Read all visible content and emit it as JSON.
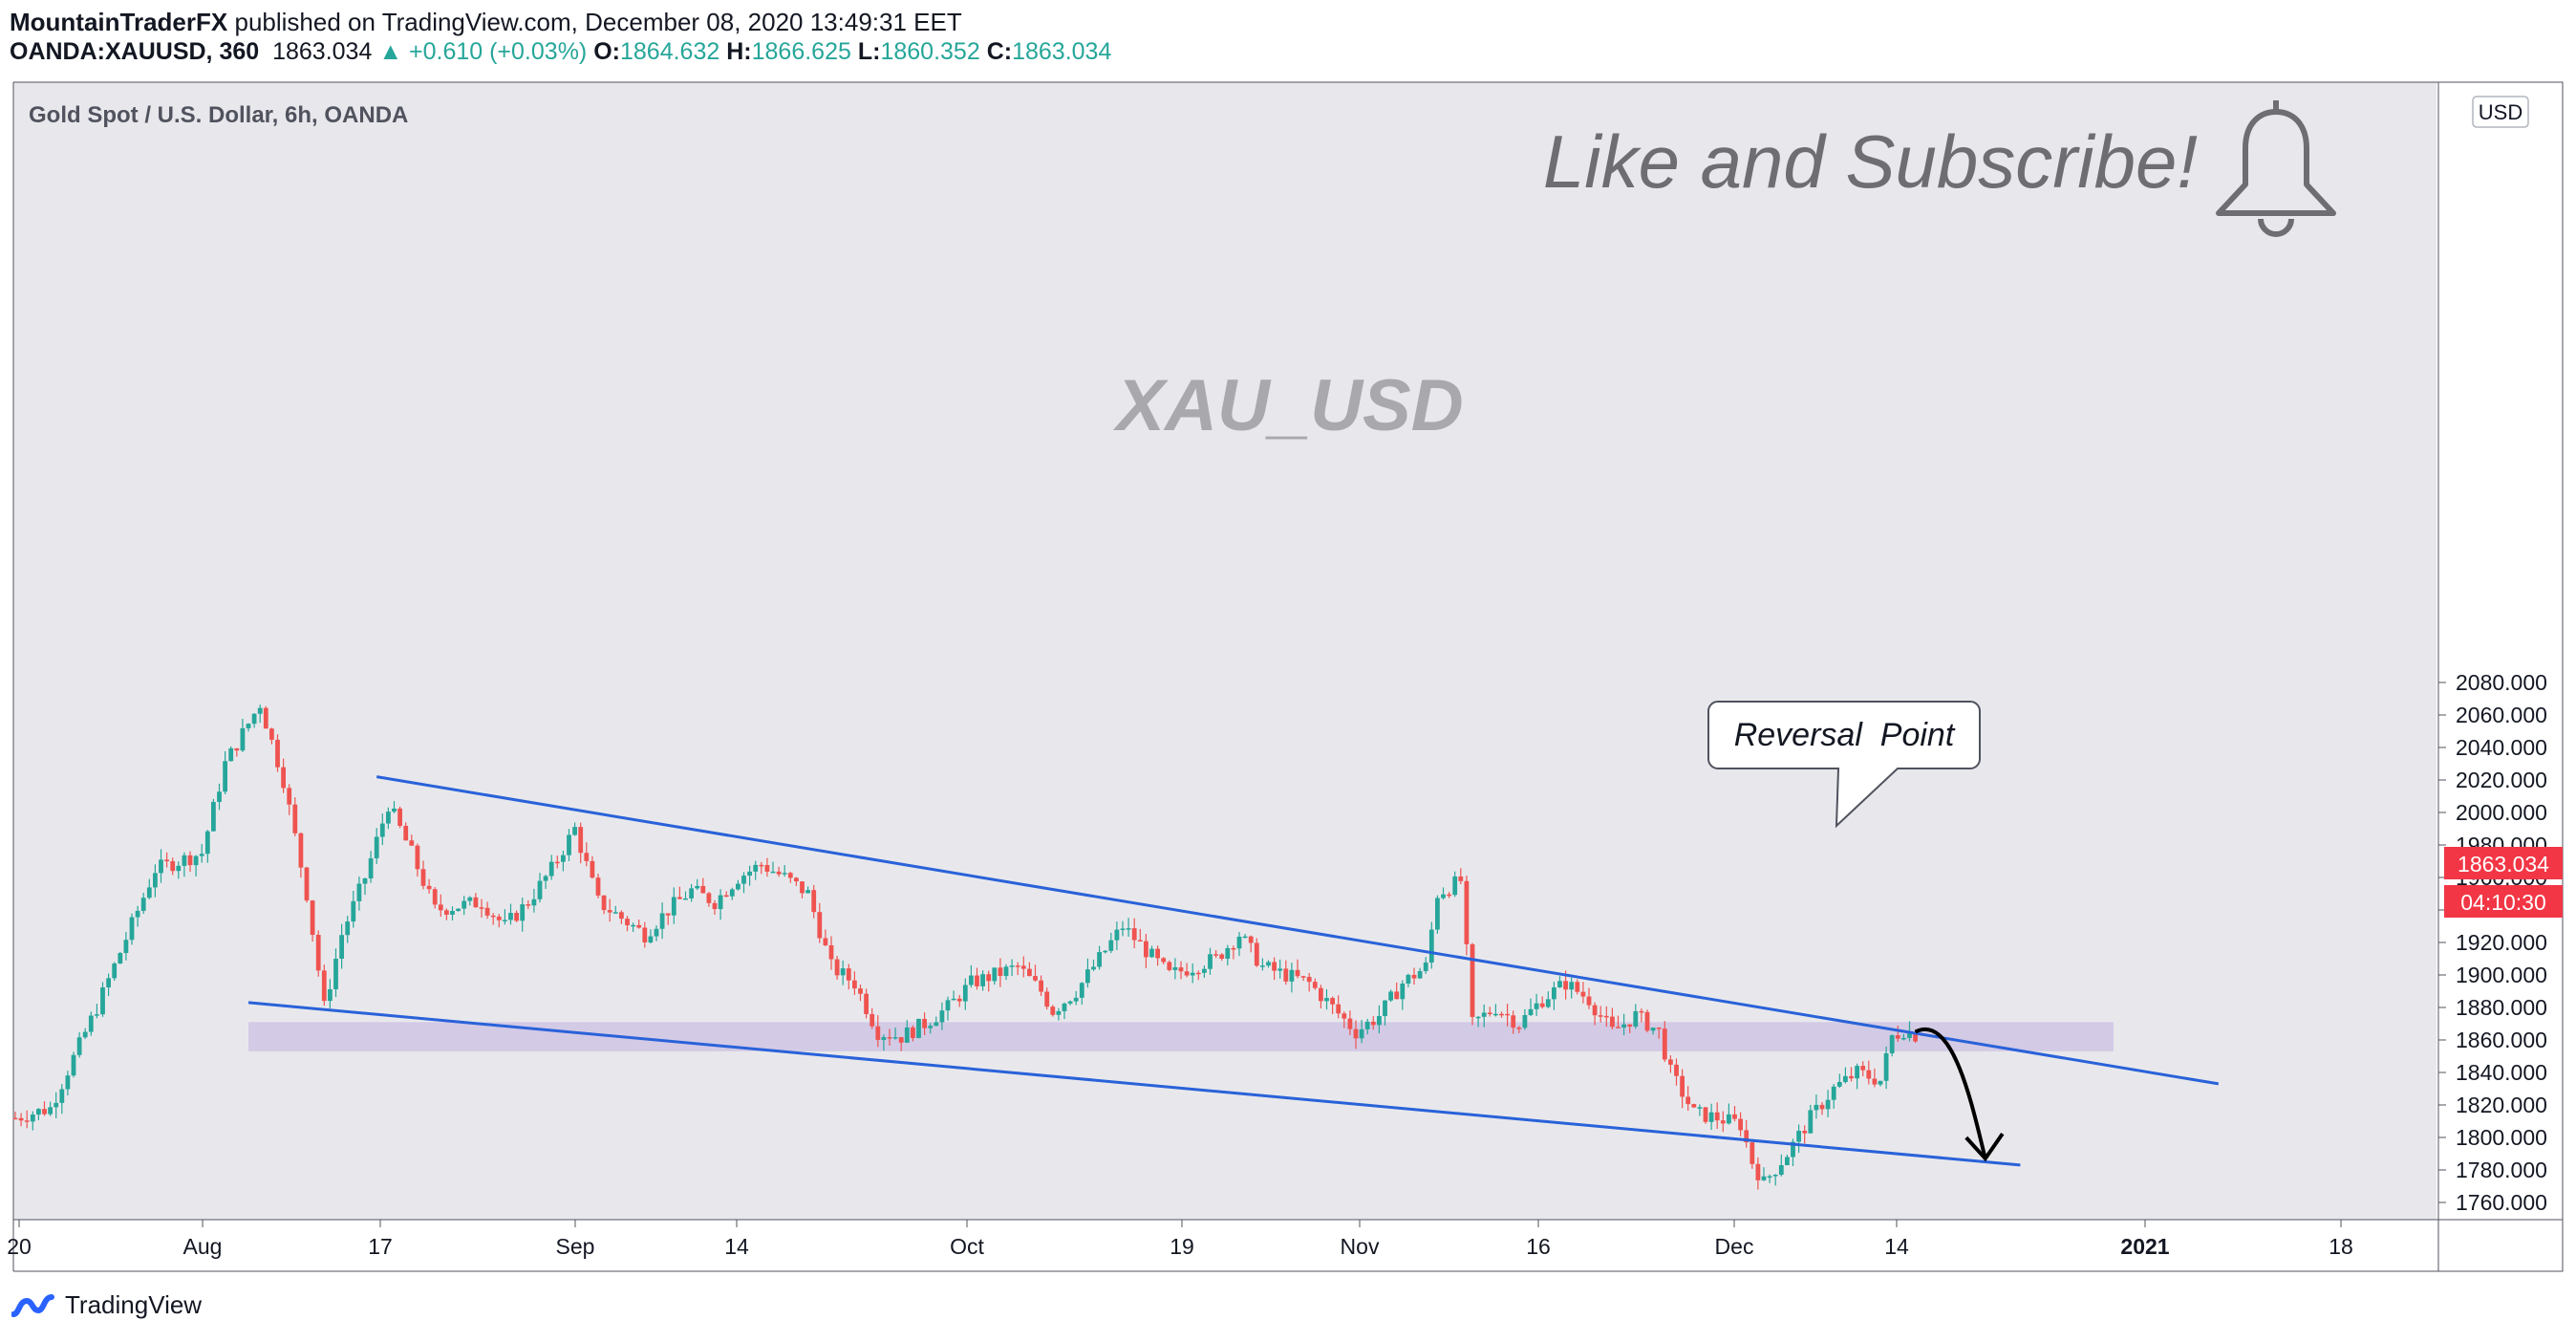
{
  "header": {
    "publisher": "MountainTraderFX",
    "published_text": "published on TradingView.com, December 08, 2020 13:49:31 EET",
    "symbol": "OANDA:XAUUSD, 360",
    "last": "1863.034",
    "change": "▲ +0.610 (+0.03%)",
    "o_label": "O:",
    "o_value": "1864.632",
    "h_label": "H:",
    "h_value": "1866.625",
    "l_label": "L:",
    "l_value": "1860.352",
    "c_label": "C:",
    "c_value": "1863.034"
  },
  "chart_title": "Gold Spot / U.S. Dollar, 6h, OANDA",
  "watermark": "XAU_USD",
  "promo_text": "Like and Subscribe!",
  "promo_icon": "bell-icon",
  "currency_badge": "USD",
  "price_badge": "1863.034",
  "timer_badge": "04:10:30",
  "callout": "Reversal  Point",
  "footer": {
    "brand": "TradingView",
    "icon": "tradingview-logo-icon"
  },
  "colors": {
    "background": "#e8e8ec",
    "up_candle": "#26a69a",
    "down_candle": "#ef5350",
    "trendline": "#2962d9",
    "zone": "#d0c6e6",
    "price_badge": "#f23645"
  },
  "chart_data": {
    "type": "candlestick",
    "instrument": "XAUUSD",
    "interval": "6h",
    "ylim": [
      1755,
      2090
    ],
    "y_ticks": [
      1760,
      1780,
      1800,
      1820,
      1840,
      1860,
      1880,
      1900,
      1920,
      1940,
      1960,
      1980,
      2000,
      2020,
      2040,
      2060,
      2080
    ],
    "x_ticks": [
      "20",
      "Aug",
      "17",
      "Sep",
      "14",
      "Oct",
      "19",
      "Nov",
      "16",
      "Dec",
      "14",
      "2021",
      "18"
    ],
    "price_path": [
      {
        "t": 0,
        "price": 1812
      },
      {
        "t": 3,
        "price": 1818
      },
      {
        "t": 7,
        "price": 1880
      },
      {
        "t": 12,
        "price": 1965
      },
      {
        "t": 16,
        "price": 1975
      },
      {
        "t": 18,
        "price": 2030
      },
      {
        "t": 21,
        "price": 2067
      },
      {
        "t": 23,
        "price": 2020
      },
      {
        "t": 25,
        "price": 1950
      },
      {
        "t": 26.5,
        "price": 1880
      },
      {
        "t": 28,
        "price": 1925
      },
      {
        "t": 30,
        "price": 1960
      },
      {
        "t": 32,
        "price": 2005
      },
      {
        "t": 34,
        "price": 1975
      },
      {
        "t": 36,
        "price": 1940
      },
      {
        "t": 40,
        "price": 1945
      },
      {
        "t": 42,
        "price": 1930
      },
      {
        "t": 44,
        "price": 1945
      },
      {
        "t": 46,
        "price": 1965
      },
      {
        "t": 48,
        "price": 1990
      },
      {
        "t": 50,
        "price": 1945
      },
      {
        "t": 52,
        "price": 1935
      },
      {
        "t": 54,
        "price": 1925
      },
      {
        "t": 56,
        "price": 1940
      },
      {
        "t": 58,
        "price": 1952
      },
      {
        "t": 60,
        "price": 1945
      },
      {
        "t": 62,
        "price": 1960
      },
      {
        "t": 64,
        "price": 1968
      },
      {
        "t": 66,
        "price": 1960
      },
      {
        "t": 68,
        "price": 1950
      },
      {
        "t": 70,
        "price": 1905
      },
      {
        "t": 72,
        "price": 1895
      },
      {
        "t": 74,
        "price": 1865
      },
      {
        "t": 76,
        "price": 1862
      },
      {
        "t": 78,
        "price": 1870
      },
      {
        "t": 80,
        "price": 1880
      },
      {
        "t": 82,
        "price": 1895
      },
      {
        "t": 84,
        "price": 1900
      },
      {
        "t": 86,
        "price": 1905
      },
      {
        "t": 88,
        "price": 1890
      },
      {
        "t": 89,
        "price": 1878
      },
      {
        "t": 91,
        "price": 1890
      },
      {
        "t": 93,
        "price": 1910
      },
      {
        "t": 95,
        "price": 1930
      },
      {
        "t": 97,
        "price": 1915
      },
      {
        "t": 99,
        "price": 1900
      },
      {
        "t": 101,
        "price": 1905
      },
      {
        "t": 103,
        "price": 1910
      },
      {
        "t": 105,
        "price": 1925
      },
      {
        "t": 107,
        "price": 1905
      },
      {
        "t": 109,
        "price": 1900
      },
      {
        "t": 111,
        "price": 1895
      },
      {
        "t": 113,
        "price": 1880
      },
      {
        "t": 115,
        "price": 1865
      },
      {
        "t": 117,
        "price": 1875
      },
      {
        "t": 119,
        "price": 1895
      },
      {
        "t": 121,
        "price": 1905
      },
      {
        "t": 122,
        "price": 1950
      },
      {
        "t": 124,
        "price": 1958
      },
      {
        "t": 125,
        "price": 1870
      },
      {
        "t": 127,
        "price": 1880
      },
      {
        "t": 129,
        "price": 1870
      },
      {
        "t": 131,
        "price": 1885
      },
      {
        "t": 133,
        "price": 1895
      },
      {
        "t": 135,
        "price": 1885
      },
      {
        "t": 137,
        "price": 1865
      },
      {
        "t": 139,
        "price": 1875
      },
      {
        "t": 141,
        "price": 1865
      },
      {
        "t": 142,
        "price": 1840
      },
      {
        "t": 144,
        "price": 1815
      },
      {
        "t": 146,
        "price": 1812
      },
      {
        "t": 148,
        "price": 1808
      },
      {
        "t": 149,
        "price": 1785
      },
      {
        "t": 150,
        "price": 1772
      },
      {
        "t": 152,
        "price": 1790
      },
      {
        "t": 154,
        "price": 1812
      },
      {
        "t": 156,
        "price": 1830
      },
      {
        "t": 158,
        "price": 1840
      },
      {
        "t": 160,
        "price": 1835
      },
      {
        "t": 161,
        "price": 1862
      },
      {
        "t": 162,
        "price": 1866
      },
      {
        "t": 163,
        "price": 1863
      }
    ],
    "drawings": {
      "upper_trendline": [
        {
          "t": 31,
          "price": 2022
        },
        {
          "t": 189,
          "price": 1833
        }
      ],
      "lower_trendline": [
        {
          "t": 20,
          "price": 1883
        },
        {
          "t": 172,
          "price": 1783
        }
      ],
      "zone": {
        "t_start": 20,
        "t_end": 180,
        "price_low": 1853,
        "price_high": 1871
      },
      "projection_arrow": [
        {
          "t": 163,
          "price": 1865
        },
        {
          "t": 169,
          "price": 1787
        }
      ],
      "callout_anchor": {
        "t": 162,
        "price": 1870
      }
    }
  }
}
